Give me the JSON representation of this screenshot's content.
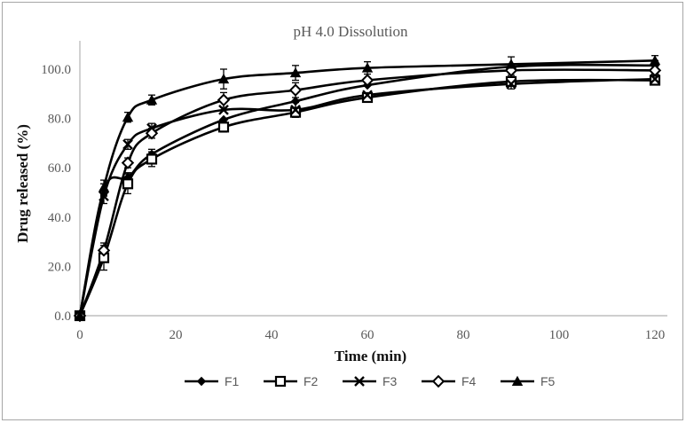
{
  "window": {
    "border_color": "#a6a6a6",
    "background": "#ffffff"
  },
  "chart_data": {
    "type": "line",
    "title": "pH 4.0 Dissolution",
    "xlabel": "Time (min)",
    "ylabel": "Drug released (%)",
    "x": [
      0,
      5,
      10,
      15,
      30,
      45,
      60,
      90,
      120
    ],
    "xticks": [
      0,
      20,
      40,
      60,
      80,
      100,
      120
    ],
    "yticks": [
      0,
      20,
      40,
      60,
      80,
      100
    ],
    "ytick_format_decimals": 1,
    "xlim": [
      0,
      120
    ],
    "ylim": [
      0,
      110
    ],
    "grid": false,
    "legend_position": "bottom",
    "error_bars": true,
    "series": [
      {
        "name": "F1",
        "marker": "filled-diamond",
        "values": [
          0.0,
          51.0,
          56.0,
          65.5,
          79.5,
          87.0,
          93.5,
          101.0,
          101.5
        ],
        "errors": [
          0,
          2.5,
          2,
          2,
          0,
          0,
          0,
          0,
          2
        ]
      },
      {
        "name": "F2",
        "marker": "open-square",
        "values": [
          0.0,
          23.5,
          53.5,
          63.5,
          76.5,
          82.5,
          88.5,
          95.0,
          95.5
        ],
        "errors": [
          0,
          5,
          4,
          3,
          2,
          2,
          0,
          0,
          0
        ]
      },
      {
        "name": "F3",
        "marker": "x",
        "values": [
          0.0,
          48.5,
          69.5,
          76.0,
          83.5,
          83.5,
          89.5,
          94.0,
          96.0
        ],
        "errors": [
          0,
          3,
          2,
          2,
          0,
          3,
          0,
          2,
          2
        ]
      },
      {
        "name": "F4",
        "marker": "open-diamond",
        "values": [
          0.0,
          26.5,
          62.0,
          74.0,
          87.5,
          91.5,
          95.5,
          99.5,
          99.5
        ],
        "errors": [
          0,
          3,
          2,
          2,
          3,
          3,
          0,
          2,
          0
        ]
      },
      {
        "name": "F5",
        "marker": "filled-triangle",
        "values": [
          0.0,
          52.0,
          80.5,
          87.5,
          96.0,
          98.5,
          100.5,
          102.0,
          103.5
        ],
        "errors": [
          0,
          3,
          2,
          2,
          4,
          3,
          2.5,
          3,
          2
        ]
      }
    ],
    "colors": {
      "series": "#000000",
      "axis_line": "#bfbfbf",
      "tick_label": "#595959",
      "title": "#595959",
      "legend_label": "#595959"
    }
  }
}
